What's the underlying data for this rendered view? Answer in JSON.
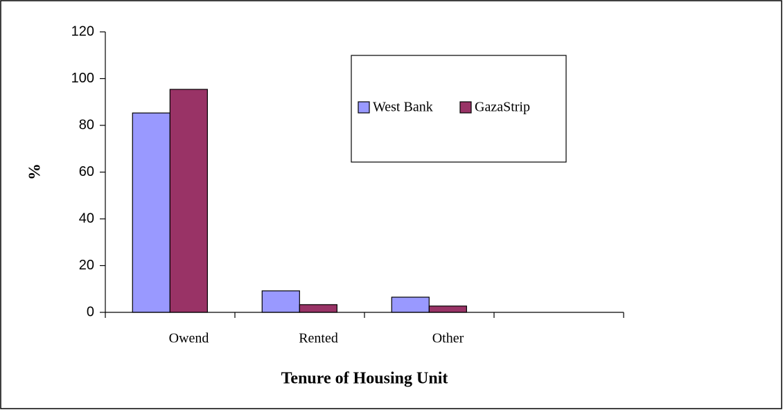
{
  "chart_data": {
    "type": "bar",
    "x_label": "Tenure of Housing Unit",
    "y_label": "%",
    "categories": [
      "Owend",
      "Rented",
      "Other",
      null
    ],
    "series": [
      {
        "name": "West Bank",
        "color": "#9999ff",
        "values": [
          85.3,
          9.2,
          6.5,
          null
        ]
      },
      {
        "name": "GazaStrip",
        "color": "#993366",
        "values": [
          95.4,
          3.3,
          2.7,
          null
        ]
      }
    ],
    "ylim": [
      0,
      120
    ],
    "yticks": [
      0,
      20,
      40,
      60,
      80,
      100,
      120
    ]
  }
}
